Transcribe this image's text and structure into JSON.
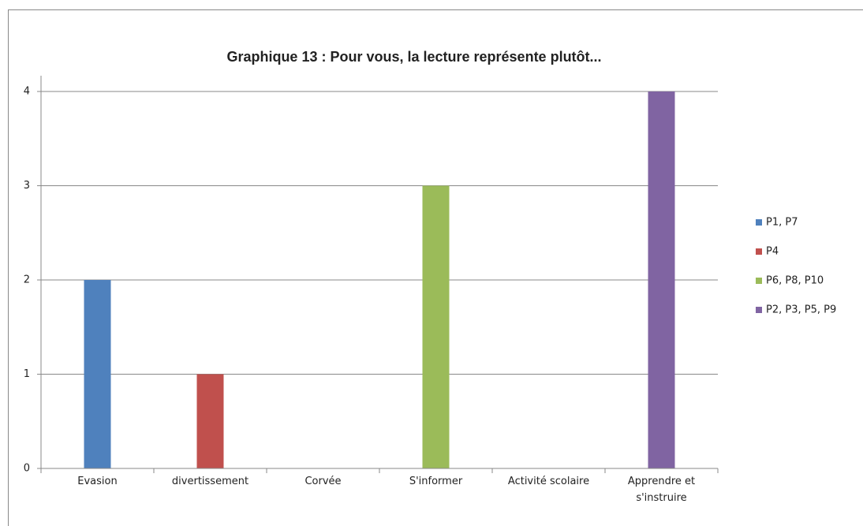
{
  "chart_data": {
    "type": "bar",
    "title": "Graphique 13 : Pour vous, la lecture représente plutôt...",
    "categories": [
      "Evasion",
      "divertissement",
      "Corvée",
      "S'informer",
      "Activité scolaire",
      "Apprendre et s'instruire"
    ],
    "series": [
      {
        "name": "P1, P7",
        "color": "#4f81bd",
        "values": [
          2,
          null,
          null,
          null,
          null,
          null
        ]
      },
      {
        "name": "P4",
        "color": "#c0504d",
        "values": [
          null,
          1,
          null,
          null,
          null,
          null
        ]
      },
      {
        "name": "P6, P8, P10",
        "color": "#9bbb59",
        "values": [
          null,
          null,
          null,
          3,
          null,
          null
        ]
      },
      {
        "name": "P2, P3, P5, P9",
        "color": "#8064a2",
        "values": [
          null,
          null,
          null,
          null,
          null,
          4
        ]
      }
    ],
    "ylim": [
      0,
      4
    ],
    "yticks": [
      0,
      1,
      2,
      3,
      4
    ],
    "grid": true,
    "legend": "right"
  }
}
